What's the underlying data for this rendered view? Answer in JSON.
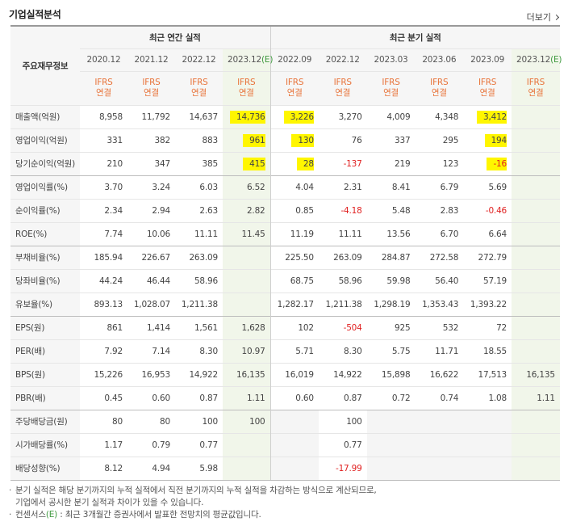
{
  "title": "기업실적분석",
  "more_label": "더보기",
  "header": {
    "row_label": "주요재무정보",
    "annual_group": "최근 연간 실적",
    "quarter_group": "최근 분기 실적",
    "annual_periods": [
      "2020.12",
      "2021.12",
      "2022.12",
      "2023.12"
    ],
    "quarter_periods": [
      "2022.09",
      "2022.12",
      "2023.03",
      "2023.06",
      "2023.09",
      "2023.12"
    ],
    "estimate_mark": "(E)",
    "ifrs_label": "IFRS",
    "consolidated_label": "연결"
  },
  "rows": [
    {
      "label": "매출액(억원)",
      "values": [
        "8,958",
        "11,792",
        "14,637",
        "14,736",
        "3,226",
        "3,270",
        "4,009",
        "4,348",
        "3,412",
        ""
      ]
    },
    {
      "label": "영업이익(억원)",
      "values": [
        "331",
        "382",
        "883",
        "961",
        "130",
        "76",
        "337",
        "295",
        "194",
        ""
      ]
    },
    {
      "label": "당기순이익(억원)",
      "values": [
        "210",
        "347",
        "385",
        "415",
        "28",
        "-137",
        "219",
        "123",
        "-16",
        ""
      ]
    },
    {
      "label": "영업이익률(%)",
      "values": [
        "3.70",
        "3.24",
        "6.03",
        "6.52",
        "4.04",
        "2.31",
        "8.41",
        "6.79",
        "5.69",
        ""
      ]
    },
    {
      "label": "순이익률(%)",
      "values": [
        "2.34",
        "2.94",
        "2.63",
        "2.82",
        "0.85",
        "-4.18",
        "5.48",
        "2.83",
        "-0.46",
        ""
      ]
    },
    {
      "label": "ROE(%)",
      "values": [
        "7.74",
        "10.06",
        "11.11",
        "11.45",
        "11.19",
        "11.11",
        "13.56",
        "6.70",
        "6.64",
        ""
      ]
    },
    {
      "label": "부채비율(%)",
      "values": [
        "185.94",
        "226.67",
        "263.09",
        "",
        "225.50",
        "263.09",
        "284.87",
        "272.58",
        "272.79",
        ""
      ]
    },
    {
      "label": "당좌비율(%)",
      "values": [
        "44.24",
        "46.44",
        "58.96",
        "",
        "68.75",
        "58.96",
        "59.98",
        "56.40",
        "57.19",
        ""
      ]
    },
    {
      "label": "유보율(%)",
      "values": [
        "893.13",
        "1,028.07",
        "1,211.38",
        "",
        "1,282.17",
        "1,211.38",
        "1,298.19",
        "1,353.43",
        "1,393.22",
        ""
      ]
    },
    {
      "label": "EPS(원)",
      "values": [
        "861",
        "1,414",
        "1,561",
        "1,628",
        "102",
        "-504",
        "925",
        "532",
        "72",
        ""
      ]
    },
    {
      "label": "PER(배)",
      "values": [
        "7.92",
        "7.14",
        "8.30",
        "10.97",
        "5.71",
        "8.30",
        "5.75",
        "11.71",
        "18.55",
        ""
      ]
    },
    {
      "label": "BPS(원)",
      "values": [
        "15,226",
        "16,953",
        "14,922",
        "16,135",
        "16,019",
        "14,922",
        "15,898",
        "16,622",
        "17,513",
        "16,135"
      ]
    },
    {
      "label": "PBR(배)",
      "values": [
        "0.45",
        "0.60",
        "0.87",
        "1.11",
        "0.60",
        "0.87",
        "0.72",
        "0.74",
        "1.08",
        "1.11"
      ]
    },
    {
      "label": "주당배당금(원)",
      "values": [
        "80",
        "80",
        "100",
        "100",
        "",
        "100",
        "",
        "",
        "",
        ""
      ]
    },
    {
      "label": "시가배당률(%)",
      "values": [
        "1.17",
        "0.79",
        "0.77",
        "",
        "",
        "0.77",
        "",
        "",
        "",
        ""
      ]
    },
    {
      "label": "배당성향(%)",
      "values": [
        "8.12",
        "4.94",
        "5.98",
        "",
        "",
        "-17.99",
        "",
        "",
        "",
        ""
      ]
    }
  ],
  "notes": {
    "line1": "분기 실적은 해당 분기까지의 누적 실적에서 직전 분기까지의 누적 실적을 차감하는 방식으로 계산되므로,",
    "line2": "기업에서 공시한 분기 실적과 차이가 있을 수 있습니다.",
    "line3_prefix": "컨센서스",
    "line3_mark": "(E)",
    "line3_suffix": " : 최근 3개월간 증권사에서 발표한 전망치의 평균값입니다."
  },
  "colors": {
    "highlight": "#fff600",
    "negative": "#e02020",
    "ifrs": "#e8743b",
    "estimate": "#3f9a3f"
  }
}
